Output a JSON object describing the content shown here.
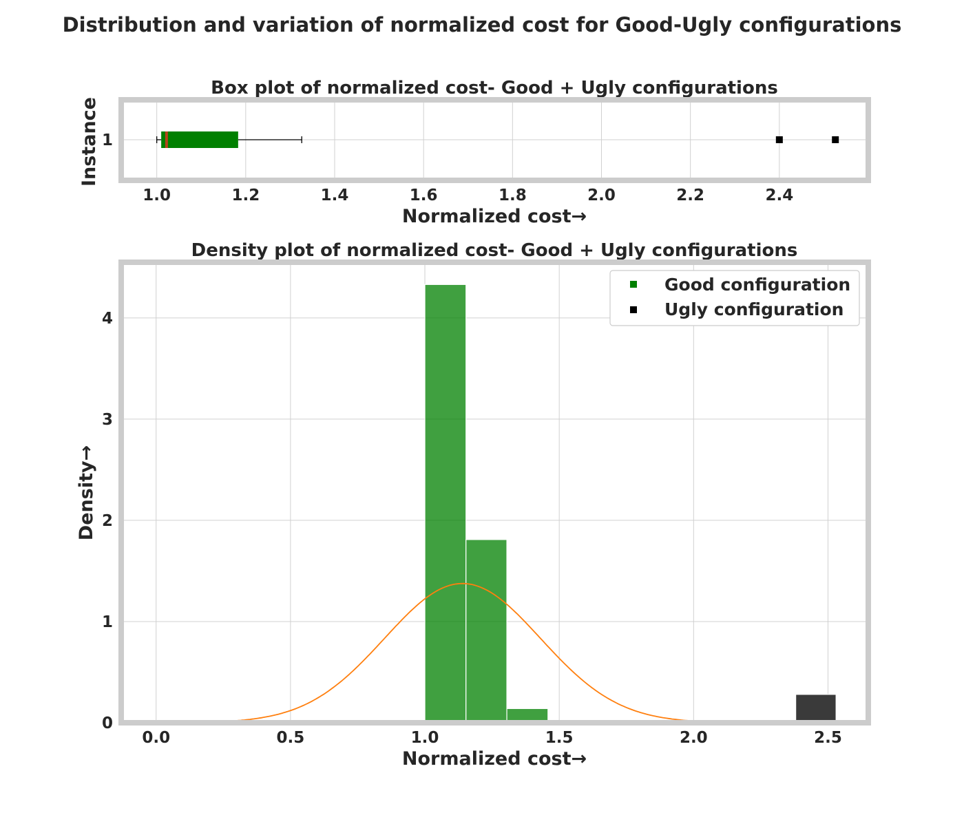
{
  "suptitle": "Distribution and variation of normalized cost for Good-Ugly configurations",
  "colors": {
    "good": "#008000",
    "ugly": "#000000",
    "ugly_bar": "#3a3a3a",
    "median": "#b5451b",
    "kde": "#ff7f0e",
    "frame": "#cccccc",
    "grid": "#d0d0d0",
    "text": "#262626"
  },
  "chart_data": [
    {
      "type": "box",
      "title": "Box plot of normalized cost- Good + Ugly configurations",
      "xlabel": "Normalized cost→",
      "ylabel": "Instance",
      "xlim": [
        0.92,
        2.6
      ],
      "xticks": [
        1.0,
        1.2,
        1.4,
        1.6,
        1.8,
        2.0,
        2.2,
        2.4
      ],
      "xtick_labels": [
        "1.0",
        "1.2",
        "1.4",
        "1.6",
        "1.8",
        "2.0",
        "2.2",
        "2.4"
      ],
      "yticks": [
        "1"
      ],
      "grid": true,
      "box": {
        "whisker_low": 1.0,
        "q1": 1.01,
        "median": 1.022,
        "q3": 1.183,
        "whisker_high": 1.326
      },
      "outliers": [
        2.4,
        2.526
      ]
    },
    {
      "type": "bar",
      "title": "Density plot of normalized cost- Good + Ugly configurations",
      "xlabel": "Normalized cost→",
      "ylabel": "Density→",
      "xlim": [
        -0.13,
        2.65
      ],
      "ylim": [
        0,
        4.55
      ],
      "xticks": [
        0.0,
        0.5,
        1.0,
        1.5,
        2.0,
        2.5
      ],
      "xtick_labels": [
        "0.0",
        "0.5",
        "1.0",
        "1.5",
        "2.0",
        "2.5"
      ],
      "yticks": [
        0,
        1,
        2,
        3,
        4
      ],
      "ytick_labels": [
        "0",
        "1",
        "2",
        "3",
        "4"
      ],
      "grid": true,
      "legend_position": "top-right",
      "legend": [
        {
          "label": "Good configuration",
          "color": "#008000"
        },
        {
          "label": "Ugly configuration",
          "color": "#000000"
        }
      ],
      "series": [
        {
          "name": "Good configuration",
          "bins": [
            [
              1.0,
              1.153,
              4.33
            ],
            [
              1.153,
              1.305,
              1.81
            ],
            [
              1.305,
              1.458,
              0.14
            ]
          ]
        },
        {
          "name": "Ugly configuration",
          "bins": [
            [
              2.38,
              2.53,
              0.28
            ]
          ]
        }
      ],
      "kde": {
        "mean": 1.14,
        "std": 0.29
      }
    }
  ]
}
